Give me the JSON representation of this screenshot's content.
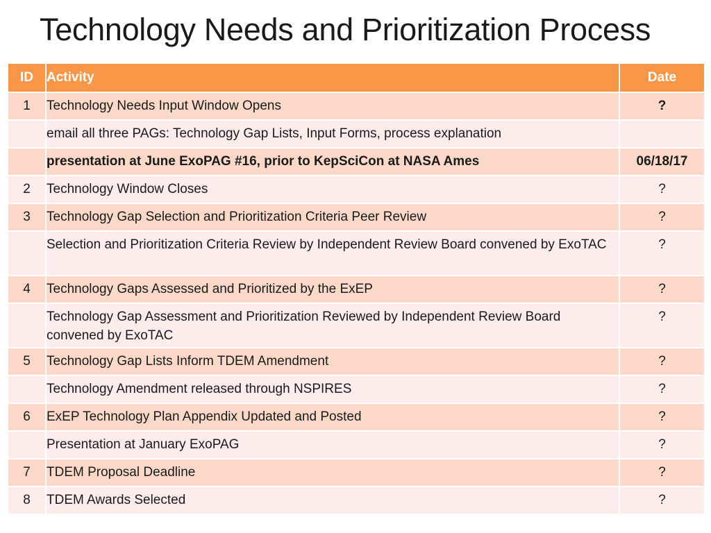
{
  "slide": {
    "title": "Technology Needs and Prioritization Process"
  },
  "table": {
    "headers": {
      "id": "ID",
      "activity": "Activity",
      "date": "Date"
    },
    "rows": [
      {
        "id": "1",
        "activity": "Technology Needs Input Window Opens",
        "date": "?"
      },
      {
        "id": "",
        "activity": "email all three PAGs: Technology Gap Lists, Input Forms, process explanation",
        "date": ""
      },
      {
        "id": "",
        "activity": "presentation at June ExoPAG #16, prior to KepSciCon at NASA Ames",
        "date": "06/18/17"
      },
      {
        "id": "2",
        "activity": "Technology Window Closes",
        "date": "?"
      },
      {
        "id": "3",
        "activity": "Technology Gap Selection and Prioritization Criteria Peer Review",
        "date": "?"
      },
      {
        "id": "",
        "activity": "Selection and Prioritization Criteria Review by Independent Review Board convened by ExoTAC",
        "date": "?"
      },
      {
        "id": "4",
        "activity": "Technology Gaps Assessed and Prioritized by the ExEP",
        "date": "?"
      },
      {
        "id": "",
        "activity": "Technology Gap Assessment and Prioritization Reviewed by Independent Review Board convened by ExoTAC",
        "date": "?"
      },
      {
        "id": "5",
        "activity": "Technology Gap Lists Inform TDEM Amendment",
        "date": "?"
      },
      {
        "id": "",
        "activity": "Technology Amendment released through NSPIRES",
        "date": "?"
      },
      {
        "id": "6",
        "activity": "ExEP Technology Plan Appendix Updated and Posted",
        "date": "?"
      },
      {
        "id": "",
        "activity": "Presentation at January ExoPAG",
        "date": "?"
      },
      {
        "id": "7",
        "activity": "TDEM Proposal Deadline",
        "date": "?"
      },
      {
        "id": "8",
        "activity": "TDEM Awards Selected",
        "date": "?"
      }
    ]
  }
}
